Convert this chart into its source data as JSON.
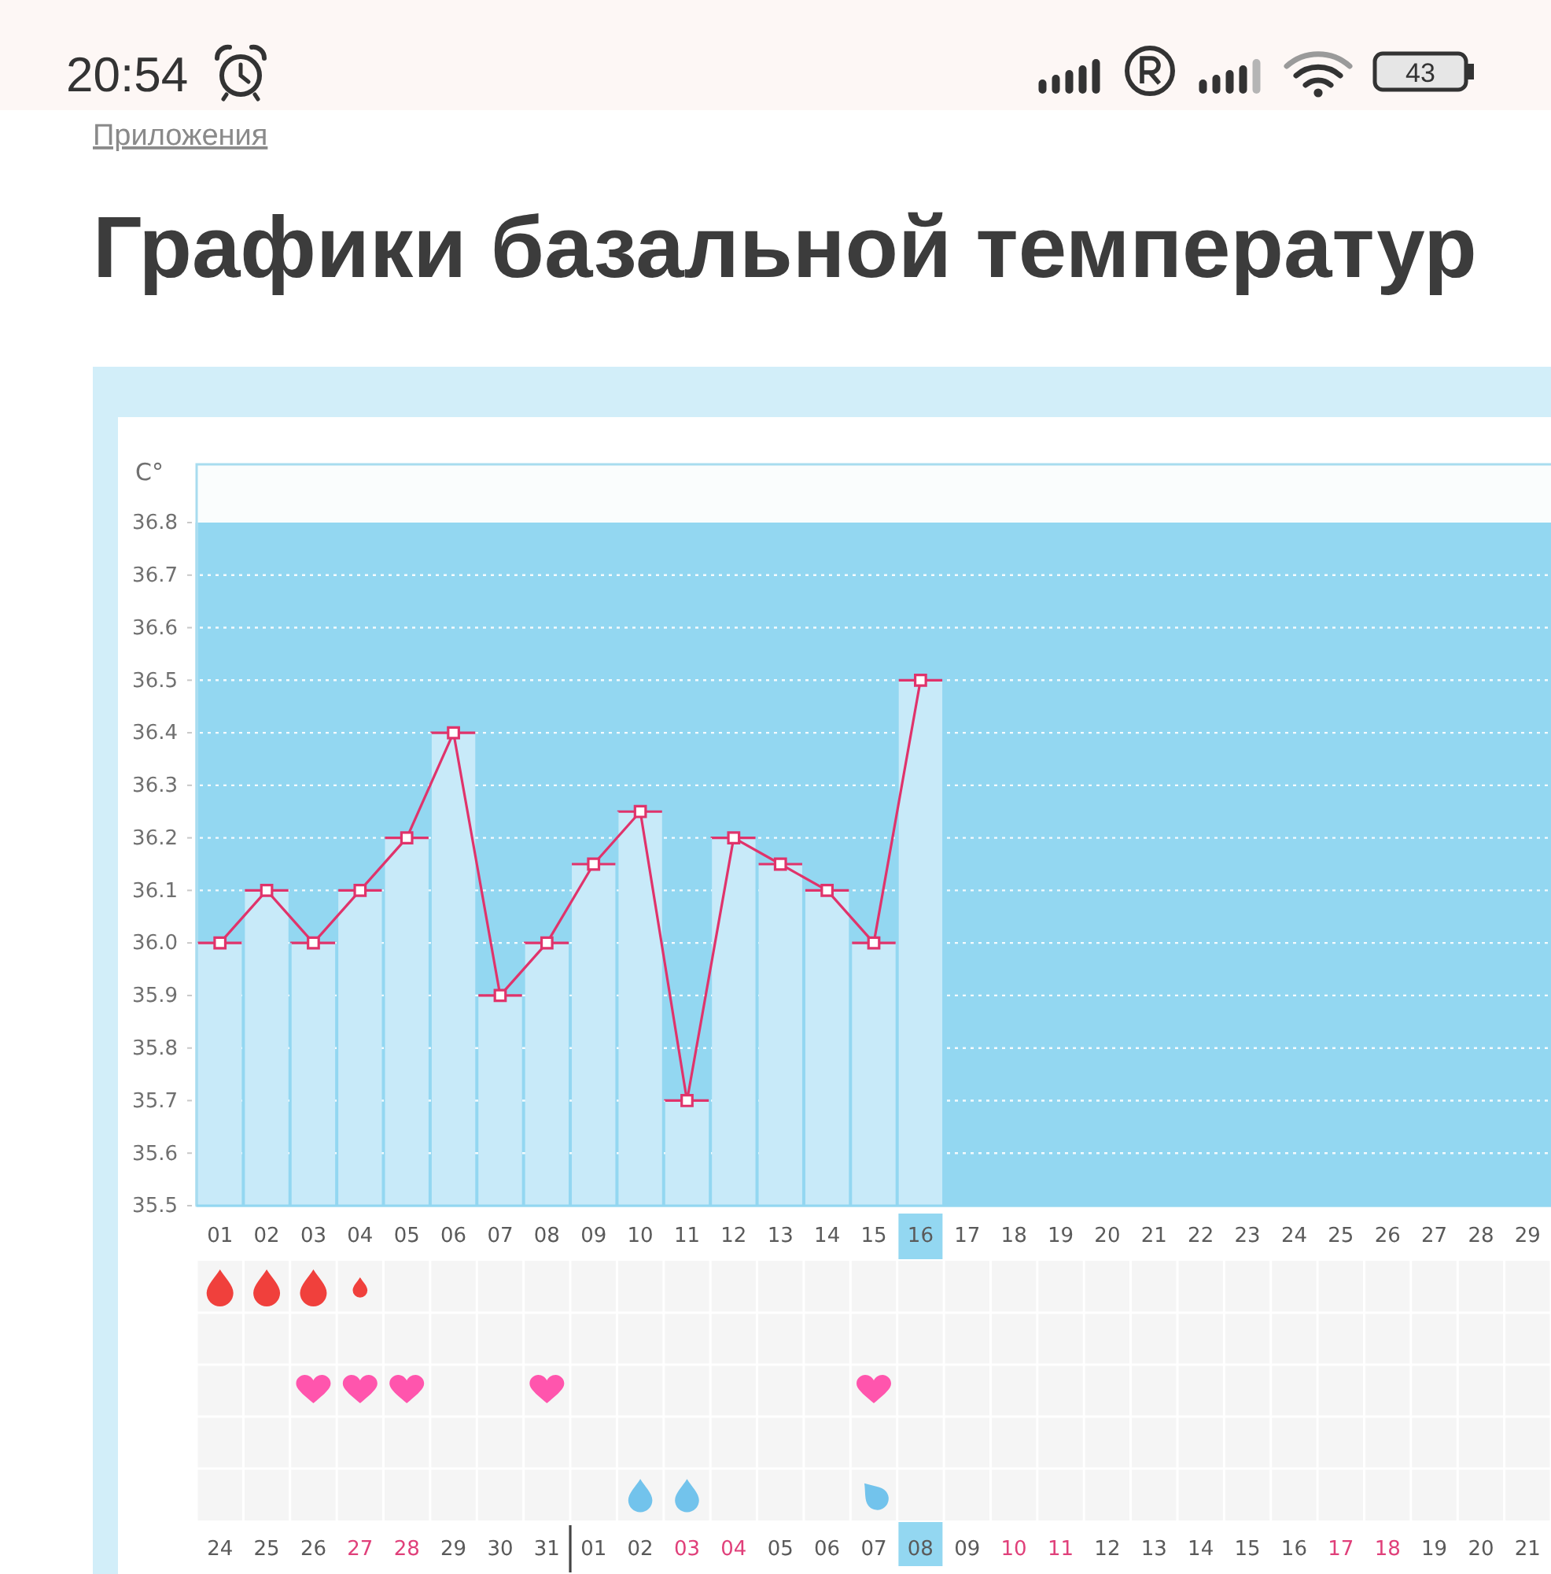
{
  "chart_data": {
    "type": "line",
    "title": "Графики базальной температур",
    "ylabel": "C°",
    "annotations": [
      "20:54",
      "43",
      "Приложения",
      "24",
      "25",
      "26",
      "27",
      "28",
      "29",
      "30",
      "31",
      "01",
      "02",
      "03",
      "04",
      "05",
      "06",
      "07",
      "08",
      "09",
      "10",
      "11",
      "12",
      "13",
      "14",
      "15",
      "16",
      "17",
      "18",
      "19",
      "20",
      "21"
    ],
    "x": [
      1,
      2,
      3,
      4,
      5,
      6,
      7,
      8,
      9,
      10,
      11,
      12,
      13,
      14,
      15,
      16
    ],
    "series": [
      {
        "type": "bar",
        "color": "#c8eaf9",
        "values": [
          36.0,
          36.1,
          36.0,
          36.1,
          36.2,
          36.4,
          35.9,
          36.0,
          36.15,
          36.25,
          35.7,
          36.2,
          36.15,
          36.1,
          36.0,
          36.5
        ]
      },
      {
        "type": "line",
        "color": "#e0336b",
        "values": [
          36.0,
          36.1,
          36.0,
          36.1,
          36.2,
          36.4,
          35.9,
          36.0,
          36.15,
          36.25,
          35.7,
          36.2,
          36.15,
          36.1,
          36.0,
          36.5
        ]
      }
    ],
    "xlim": [
      0.5,
      29.5
    ],
    "xticks": [
      {
        "value": 1,
        "label": "01"
      },
      {
        "value": 2,
        "label": "02"
      },
      {
        "value": 3,
        "label": "03"
      },
      {
        "value": 4,
        "label": "04"
      },
      {
        "value": 5,
        "label": "05"
      },
      {
        "value": 6,
        "label": "06"
      },
      {
        "value": 7,
        "label": "07"
      },
      {
        "value": 8,
        "label": "08"
      },
      {
        "value": 9,
        "label": "09"
      },
      10,
      11,
      12,
      13,
      14,
      15,
      16,
      17,
      18,
      19,
      20,
      21,
      22,
      23,
      24,
      25,
      26,
      27,
      28,
      29
    ],
    "ylim": [
      35.5,
      36.8
    ],
    "yticks": [
      35.5,
      35.6,
      35.7,
      35.8,
      35.9,
      {
        "value": 36,
        "label": "36.0"
      },
      36.1,
      36.2,
      36.3,
      36.4,
      36.5,
      36.6,
      36.7,
      36.8
    ],
    "grid": "y",
    "marker": "square",
    "line_style": "solid"
  }
}
